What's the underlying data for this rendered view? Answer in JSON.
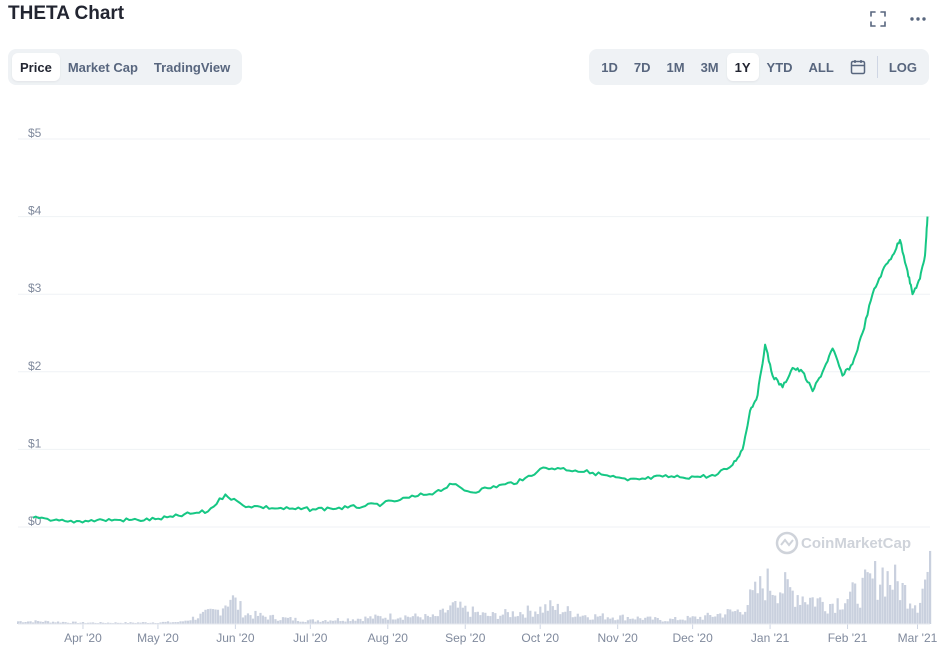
{
  "header": {
    "title": "THETA Chart"
  },
  "tabs": [
    {
      "label": "Price",
      "active": true
    },
    {
      "label": "Market Cap",
      "active": false
    },
    {
      "label": "TradingView",
      "active": false
    }
  ],
  "ranges": [
    {
      "label": "1D",
      "active": false
    },
    {
      "label": "7D",
      "active": false
    },
    {
      "label": "1M",
      "active": false
    },
    {
      "label": "3M",
      "active": false
    },
    {
      "label": "1Y",
      "active": true
    },
    {
      "label": "YTD",
      "active": false
    },
    {
      "label": "ALL",
      "active": false
    }
  ],
  "log_label": "LOG",
  "watermark": "CoinMarketCap",
  "colors": {
    "line": "#16c784",
    "volume": "#c9d0de",
    "grid": "#eff2f5",
    "tick": "#808a9d"
  },
  "chart_data": {
    "type": "line",
    "title": "THETA Chart",
    "series": [
      {
        "values": [
          [
            "2020-03-12",
            0.12
          ],
          [
            "2020-03-19",
            0.08
          ],
          [
            "2020-03-26",
            0.07
          ],
          [
            "2020-04-02",
            0.08
          ],
          [
            "2020-04-09",
            0.09
          ],
          [
            "2020-04-16",
            0.09
          ],
          [
            "2020-04-23",
            0.09
          ],
          [
            "2020-04-30",
            0.1
          ],
          [
            "2020-05-07",
            0.13
          ],
          [
            "2020-05-14",
            0.17
          ],
          [
            "2020-05-21",
            0.2
          ],
          [
            "2020-05-28",
            0.42
          ],
          [
            "2020-06-04",
            0.28
          ],
          [
            "2020-06-11",
            0.26
          ],
          [
            "2020-06-18",
            0.24
          ],
          [
            "2020-06-25",
            0.23
          ],
          [
            "2020-07-02",
            0.23
          ],
          [
            "2020-07-09",
            0.24
          ],
          [
            "2020-07-16",
            0.25
          ],
          [
            "2020-07-23",
            0.27
          ],
          [
            "2020-07-30",
            0.3
          ],
          [
            "2020-08-06",
            0.35
          ],
          [
            "2020-08-13",
            0.4
          ],
          [
            "2020-08-20",
            0.45
          ],
          [
            "2020-08-27",
            0.55
          ],
          [
            "2020-09-03",
            0.45
          ],
          [
            "2020-09-10",
            0.5
          ],
          [
            "2020-09-17",
            0.55
          ],
          [
            "2020-09-24",
            0.6
          ],
          [
            "2020-10-01",
            0.75
          ],
          [
            "2020-10-08",
            0.76
          ],
          [
            "2020-10-15",
            0.73
          ],
          [
            "2020-10-22",
            0.7
          ],
          [
            "2020-10-29",
            0.65
          ],
          [
            "2020-11-05",
            0.6
          ],
          [
            "2020-11-12",
            0.62
          ],
          [
            "2020-11-19",
            0.65
          ],
          [
            "2020-11-26",
            0.64
          ],
          [
            "2020-12-03",
            0.65
          ],
          [
            "2020-12-10",
            0.66
          ],
          [
            "2020-12-17",
            0.8
          ],
          [
            "2020-12-21",
            1.0
          ],
          [
            "2020-12-24",
            1.5
          ],
          [
            "2020-12-27",
            1.7
          ],
          [
            "2020-12-30",
            2.35
          ],
          [
            "2021-01-02",
            1.95
          ],
          [
            "2021-01-06",
            1.8
          ],
          [
            "2021-01-10",
            2.05
          ],
          [
            "2021-01-14",
            2.0
          ],
          [
            "2021-01-18",
            1.75
          ],
          [
            "2021-01-22",
            2.0
          ],
          [
            "2021-01-26",
            2.3
          ],
          [
            "2021-01-30",
            1.95
          ],
          [
            "2021-02-03",
            2.1
          ],
          [
            "2021-02-07",
            2.5
          ],
          [
            "2021-02-11",
            3.0
          ],
          [
            "2021-02-15",
            3.3
          ],
          [
            "2021-02-19",
            3.5
          ],
          [
            "2021-02-22",
            3.7
          ],
          [
            "2021-02-25",
            3.3
          ],
          [
            "2021-02-27",
            3.0
          ],
          [
            "2021-03-02",
            3.2
          ],
          [
            "2021-03-04",
            3.5
          ],
          [
            "2021-03-05",
            4.0
          ]
        ]
      }
    ],
    "y_ticks": [
      "$0",
      "$1",
      "$2",
      "$3",
      "$4",
      "$5"
    ],
    "x_ticks": [
      "Apr '20",
      "May '20",
      "Jun '20",
      "Jul '20",
      "Aug '20",
      "Sep '20",
      "Oct '20",
      "Nov '20",
      "Dec '20",
      "Jan '21",
      "Feb '21",
      "Mar '21"
    ],
    "ylim": [
      0,
      5
    ],
    "xlim": [
      "2020-03-06",
      "2021-03-06"
    ],
    "grid": true,
    "volume": {
      "unit": "relative",
      "values": [
        [
          "2020-03-15",
          0.04
        ],
        [
          "2020-04-01",
          0.02
        ],
        [
          "2020-04-20",
          0.02
        ],
        [
          "2020-05-10",
          0.03
        ],
        [
          "2020-05-25",
          0.2
        ],
        [
          "2020-05-30",
          0.4
        ],
        [
          "2020-06-05",
          0.15
        ],
        [
          "2020-06-15",
          0.1
        ],
        [
          "2020-07-01",
          0.05
        ],
        [
          "2020-07-20",
          0.08
        ],
        [
          "2020-08-05",
          0.12
        ],
        [
          "2020-08-20",
          0.1
        ],
        [
          "2020-08-27",
          0.25
        ],
        [
          "2020-09-10",
          0.12
        ],
        [
          "2020-09-25",
          0.18
        ],
        [
          "2020-10-05",
          0.25
        ],
        [
          "2020-10-20",
          0.12
        ],
        [
          "2020-11-05",
          0.1
        ],
        [
          "2020-11-20",
          0.06
        ],
        [
          "2020-12-05",
          0.1
        ],
        [
          "2020-12-20",
          0.2
        ],
        [
          "2020-12-30",
          0.6
        ],
        [
          "2021-01-05",
          0.55
        ],
        [
          "2021-01-15",
          0.4
        ],
        [
          "2021-01-25",
          0.3
        ],
        [
          "2021-02-05",
          0.45
        ],
        [
          "2021-02-15",
          0.75
        ],
        [
          "2021-02-22",
          0.55
        ],
        [
          "2021-03-01",
          0.3
        ],
        [
          "2021-03-05",
          0.75
        ]
      ]
    }
  }
}
